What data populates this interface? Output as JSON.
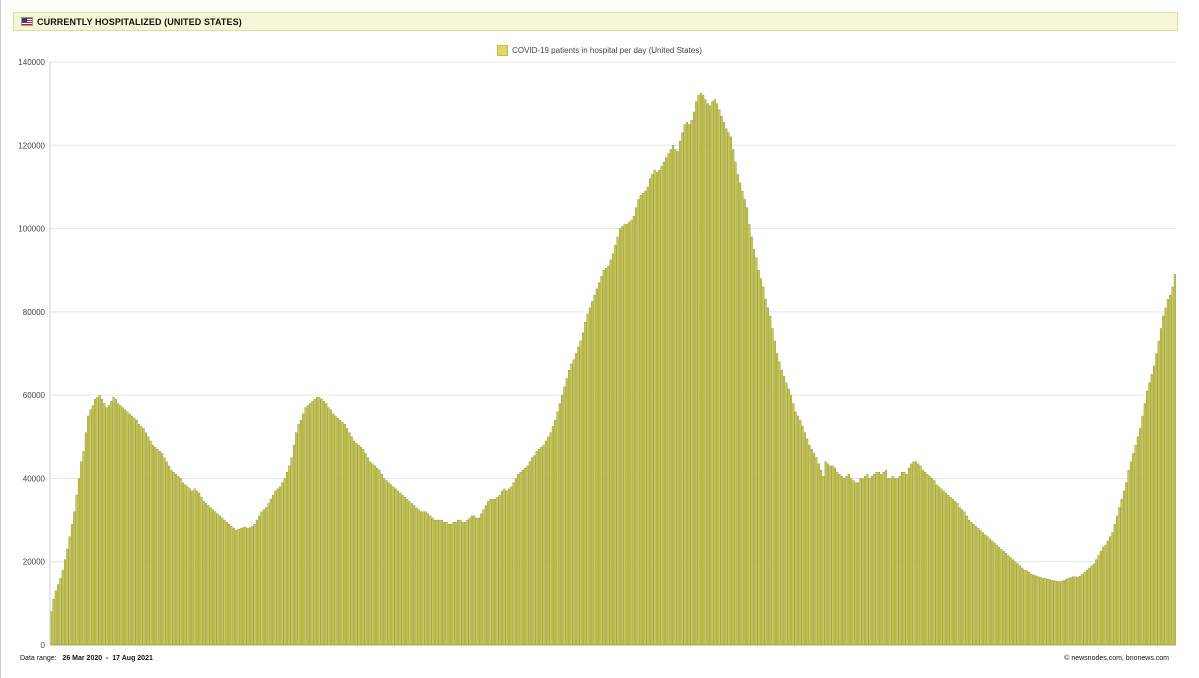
{
  "header": {
    "flag_icon": "us-flag-icon",
    "title": "CURRENTLY HOSPITALIZED (UNITED STATES)"
  },
  "colors": {
    "bar": "#c8c850",
    "bar_stroke": "#8f8f28",
    "header_bg": "#f6f6d6"
  },
  "footer": {
    "range_label": "Data range:",
    "range_start": "26 Mar 2020",
    "range_sep": "-",
    "range_end": "17 Aug 2021",
    "credit": "©  newsnodes.com, bnonews.com"
  },
  "chart_data": {
    "type": "bar",
    "title": "",
    "xlabel": "",
    "ylabel": "",
    "x_start": "26 Mar 2020",
    "x_end": "17 Aug 2021",
    "ylim": [
      0,
      140000
    ],
    "yticks": [
      {
        "value": 0,
        "label": "0"
      },
      {
        "value": 20000,
        "label": "20000"
      },
      {
        "value": 40000,
        "label": "40000"
      },
      {
        "value": 60000,
        "label": "60000"
      },
      {
        "value": 80000,
        "label": "80000"
      },
      {
        "value": 100000,
        "label": "100000"
      },
      {
        "value": 120000,
        "label": "120000"
      },
      {
        "value": 140000,
        "label": "140000"
      }
    ],
    "grid": true,
    "legend_position": "top-center",
    "series": [
      {
        "name": "COVID-19 patients in hospital per day (United States)",
        "color": "#c8c850",
        "values": [
          8000,
          11000,
          13000,
          14500,
          16000,
          18000,
          20500,
          23000,
          26000,
          29000,
          32000,
          36000,
          40000,
          44000,
          46500,
          51000,
          55000,
          56500,
          57500,
          59000,
          59500,
          60000,
          59000,
          58000,
          57000,
          57500,
          58500,
          59500,
          59000,
          58000,
          57500,
          57000,
          56500,
          56000,
          55500,
          55000,
          54500,
          54000,
          53000,
          52500,
          52000,
          51000,
          50000,
          49000,
          48000,
          47500,
          47000,
          46500,
          46000,
          45000,
          44000,
          43000,
          42000,
          41500,
          41000,
          40500,
          40000,
          39000,
          38500,
          38000,
          37500,
          37000,
          37500,
          37000,
          36500,
          35500,
          34500,
          34000,
          33500,
          33000,
          32500,
          32000,
          31500,
          31000,
          30500,
          30000,
          29500,
          29000,
          28500,
          28000,
          27500,
          27800,
          28000,
          28200,
          28300,
          28000,
          28200,
          28500,
          29000,
          30000,
          31000,
          32000,
          32500,
          33000,
          34000,
          35000,
          36000,
          37000,
          37500,
          38000,
          39000,
          40000,
          41500,
          43000,
          45000,
          48000,
          51000,
          53000,
          54000,
          55500,
          57000,
          57500,
          58000,
          58500,
          59000,
          59500,
          59500,
          59000,
          58500,
          58000,
          57000,
          56500,
          55500,
          55000,
          54500,
          54000,
          53500,
          53000,
          52000,
          51000,
          50000,
          49000,
          48500,
          48000,
          47500,
          47000,
          46000,
          45000,
          44000,
          43500,
          43000,
          42500,
          42000,
          41000,
          40000,
          39500,
          39000,
          38500,
          38000,
          37500,
          37000,
          36500,
          36000,
          35500,
          35000,
          34500,
          34000,
          33500,
          33000,
          32500,
          32000,
          32000,
          32000,
          31500,
          31000,
          30500,
          30000,
          30000,
          30000,
          30000,
          29500,
          29500,
          29000,
          29000,
          29500,
          29500,
          30000,
          30000,
          29500,
          29500,
          30000,
          30500,
          31000,
          31000,
          30500,
          30500,
          31500,
          32500,
          33500,
          34500,
          35000,
          35000,
          35000,
          35500,
          36000,
          37000,
          37500,
          37000,
          37500,
          38000,
          39000,
          40000,
          41000,
          41500,
          42000,
          42500,
          43000,
          44000,
          45000,
          45500,
          46500,
          47000,
          47500,
          48000,
          49000,
          50000,
          51000,
          52500,
          54000,
          56000,
          58000,
          60000,
          62000,
          64000,
          66000,
          67500,
          68500,
          70000,
          71500,
          73000,
          75000,
          77500,
          79500,
          81000,
          82500,
          84000,
          85500,
          87000,
          88500,
          90000,
          90500,
          91000,
          92500,
          94000,
          96000,
          98000,
          100000,
          100500,
          101000,
          101000,
          101500,
          102000,
          103000,
          105000,
          107000,
          108000,
          108500,
          109000,
          110000,
          112000,
          113000,
          114000,
          113500,
          114000,
          115000,
          116000,
          117000,
          118000,
          119000,
          120000,
          119000,
          118500,
          121000,
          123000,
          125000,
          125500,
          125000,
          126000,
          128000,
          130500,
          132000,
          132500,
          132000,
          131000,
          130000,
          129500,
          130500,
          131000,
          130000,
          128500,
          127000,
          125500,
          124000,
          123000,
          122000,
          119000,
          116000,
          113000,
          111000,
          109000,
          107000,
          105000,
          101000,
          98000,
          95000,
          93000,
          90000,
          88000,
          86000,
          83000,
          81000,
          79000,
          76000,
          73000,
          70000,
          68000,
          66000,
          64500,
          63000,
          61500,
          60000,
          58000,
          56000,
          55000,
          54000,
          52500,
          51000,
          49500,
          48000,
          47000,
          46000,
          45000,
          43500,
          42000,
          40500,
          44000,
          43500,
          43000,
          43000,
          42500,
          41500,
          41000,
          40500,
          40000,
          40500,
          41000,
          40000,
          39500,
          39000,
          39000,
          40000,
          40000,
          40500,
          41000,
          40000,
          40500,
          41000,
          41500,
          41500,
          41000,
          41500,
          42000,
          40000,
          40000,
          40500,
          40000,
          40000,
          40500,
          41500,
          41500,
          41000,
          42500,
          43500,
          44000,
          44000,
          43500,
          43000,
          42000,
          41500,
          41000,
          40500,
          40000,
          39500,
          38500,
          38000,
          37500,
          37000,
          36500,
          36000,
          35500,
          35000,
          34500,
          34000,
          33000,
          32500,
          32000,
          31000,
          30000,
          29500,
          29000,
          28500,
          28000,
          27500,
          27000,
          26500,
          26000,
          25500,
          25000,
          24500,
          24000,
          23500,
          23000,
          22500,
          22000,
          21500,
          21000,
          20500,
          20000,
          19500,
          19000,
          18500,
          18000,
          17800,
          17500,
          17000,
          16800,
          16600,
          16400,
          16200,
          16000,
          16000,
          15800,
          15700,
          15500,
          15400,
          15300,
          15200,
          15300,
          15500,
          15800,
          16000,
          16200,
          16400,
          16400,
          16300,
          16500,
          17000,
          17500,
          18000,
          18500,
          19000,
          19500,
          20500,
          21500,
          22500,
          23500,
          24000,
          25000,
          26000,
          27000,
          29000,
          31000,
          33000,
          35000,
          37000,
          39000,
          42000,
          44000,
          46000,
          48000,
          50000,
          52000,
          55000,
          58000,
          61000,
          63000,
          65000,
          67000,
          70000,
          73000,
          76000,
          79000,
          81000,
          83000,
          84000,
          86000,
          89000
        ]
      }
    ]
  }
}
